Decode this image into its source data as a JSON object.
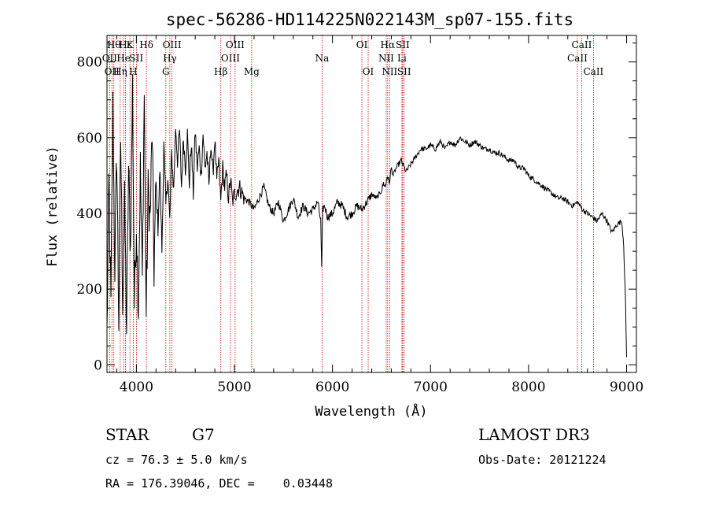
{
  "chart_data": {
    "type": "line",
    "title": "spec-56286-HD114225N022143M_sp07-155.fits",
    "xlabel": "Wavelength (Å)",
    "ylabel": "Flux (relative)",
    "xlim": [
      3700,
      9100
    ],
    "ylim": [
      -20,
      870
    ],
    "x_ticks": [
      4000,
      5000,
      6000,
      7000,
      8000,
      9000
    ],
    "y_ticks": [
      0,
      200,
      400,
      600,
      800
    ],
    "series": [
      {
        "name": "flux",
        "x": [
          3700,
          3720,
          3740,
          3760,
          3780,
          3800,
          3820,
          3840,
          3860,
          3880,
          3900,
          3920,
          3940,
          3960,
          3980,
          4000,
          4020,
          4040,
          4060,
          4080,
          4100,
          4120,
          4140,
          4160,
          4180,
          4200,
          4220,
          4240,
          4260,
          4280,
          4300,
          4320,
          4340,
          4360,
          4380,
          4400,
          4420,
          4440,
          4460,
          4480,
          4500,
          4520,
          4540,
          4560,
          4580,
          4600,
          4620,
          4640,
          4660,
          4680,
          4700,
          4720,
          4740,
          4760,
          4780,
          4800,
          4820,
          4840,
          4860,
          4880,
          4900,
          4920,
          4940,
          4960,
          4980,
          5000,
          5050,
          5100,
          5150,
          5200,
          5250,
          5300,
          5350,
          5400,
          5450,
          5500,
          5550,
          5600,
          5650,
          5700,
          5750,
          5800,
          5850,
          5880,
          5890,
          5900,
          5920,
          5950,
          6000,
          6050,
          6100,
          6150,
          6200,
          6250,
          6300,
          6350,
          6400,
          6450,
          6500,
          6520,
          6540,
          6560,
          6580,
          6600,
          6620,
          6650,
          6700,
          6750,
          6800,
          6850,
          6900,
          6950,
          7000,
          7050,
          7100,
          7150,
          7200,
          7250,
          7300,
          7350,
          7400,
          7450,
          7500,
          7550,
          7600,
          7650,
          7700,
          7750,
          7800,
          7850,
          7900,
          7950,
          8000,
          8050,
          8100,
          8150,
          8200,
          8250,
          8300,
          8350,
          8400,
          8450,
          8500,
          8550,
          8600,
          8650,
          8700,
          8750,
          8800,
          8850,
          8900,
          8950,
          8970,
          8990,
          9000
        ],
        "values": [
          80,
          480,
          150,
          680,
          260,
          560,
          120,
          600,
          180,
          420,
          90,
          520,
          300,
          740,
          160,
          380,
          150,
          520,
          220,
          720,
          130,
          460,
          380,
          620,
          250,
          480,
          360,
          520,
          300,
          580,
          420,
          500,
          380,
          560,
          460,
          630,
          540,
          620,
          470,
          600,
          520,
          610,
          480,
          590,
          450,
          620,
          520,
          570,
          500,
          610,
          520,
          560,
          470,
          590,
          500,
          600,
          480,
          540,
          430,
          520,
          470,
          500,
          440,
          490,
          430,
          450,
          470,
          440,
          430,
          410,
          440,
          470,
          420,
          400,
          430,
          380,
          410,
          440,
          390,
          420,
          400,
          410,
          430,
          380,
          250,
          410,
          420,
          390,
          400,
          430,
          420,
          390,
          400,
          420,
          410,
          430,
          450,
          440,
          460,
          480,
          470,
          500,
          480,
          520,
          500,
          520,
          540,
          510,
          530,
          550,
          570,
          570,
          580,
          570,
          590,
          570,
          590,
          580,
          600,
          590,
          580,
          590,
          580,
          570,
          570,
          560,
          560,
          550,
          540,
          540,
          520,
          520,
          500,
          490,
          480,
          470,
          460,
          450,
          440,
          440,
          430,
          420,
          430,
          410,
          400,
          390,
          380,
          400,
          380,
          350,
          370,
          380,
          320,
          150,
          20
        ]
      }
    ],
    "lines": [
      {
        "wave": 3727,
        "label": "OII",
        "row": 2
      },
      {
        "wave": 3750,
        "label": "OII",
        "row": 3
      },
      {
        "wave": 3770,
        "label": "Hθ",
        "row": 1
      },
      {
        "wave": 3835,
        "label": "Hη",
        "row": 3
      },
      {
        "wave": 3869,
        "label": "He",
        "row": 2
      },
      {
        "wave": 3889,
        "label": "Hε",
        "row": 1
      },
      {
        "wave": 3934,
        "label": "K",
        "row": 1
      },
      {
        "wave": 3968,
        "label": "H",
        "row": 3
      },
      {
        "wave": 4000,
        "label": "SII",
        "row": 2
      },
      {
        "wave": 4102,
        "label": "Hδ",
        "row": 1
      },
      {
        "wave": 4300,
        "label": "G",
        "row": 3
      },
      {
        "wave": 4341,
        "label": "Hγ",
        "row": 2
      },
      {
        "wave": 4363,
        "label": "OIII",
        "row": 1
      },
      {
        "wave": 4861,
        "label": "Hβ",
        "row": 3
      },
      {
        "wave": 4959,
        "label": "OIII",
        "row": 2
      },
      {
        "wave": 5007,
        "label": "OIII",
        "row": 1
      },
      {
        "wave": 5175,
        "label": "Mg",
        "row": 3
      },
      {
        "wave": 5894,
        "label": "Na",
        "row": 2
      },
      {
        "wave": 6300,
        "label": "OI",
        "row": 1
      },
      {
        "wave": 6364,
        "label": "OI",
        "row": 3
      },
      {
        "wave": 6548,
        "label": "NII",
        "row": 2
      },
      {
        "wave": 6563,
        "label": "Hα",
        "row": 1
      },
      {
        "wave": 6583,
        "label": "NII",
        "row": 3
      },
      {
        "wave": 6708,
        "label": "Li",
        "row": 2
      },
      {
        "wave": 6716,
        "label": "SII",
        "row": 1
      },
      {
        "wave": 6731,
        "label": "SII",
        "row": 3
      },
      {
        "wave": 8498,
        "label": "CaII",
        "row": 2
      },
      {
        "wave": 8542,
        "label": "CaII",
        "row": 1
      },
      {
        "wave": 8662,
        "label": "CaII",
        "row": 3
      }
    ]
  },
  "info": {
    "object_type": "STAR",
    "subclass": "G7",
    "redshift": "cz = 76.3 ± 5.0 km/s",
    "coordinates": "RA = 176.39046, DEC =    0.03448",
    "survey": "LAMOST DR3",
    "obs_date": "Obs-Date: 20121224"
  }
}
